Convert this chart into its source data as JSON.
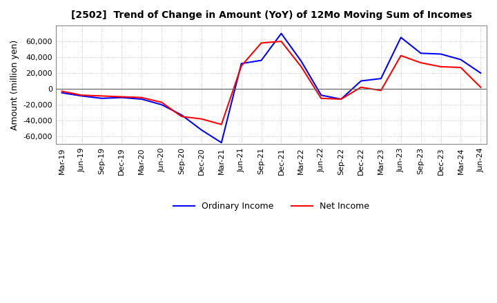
{
  "title": "[2502]  Trend of Change in Amount (YoY) of 12Mo Moving Sum of Incomes",
  "ylabel": "Amount (million yen)",
  "ylim": [
    -70000,
    80000
  ],
  "yticks": [
    -60000,
    -40000,
    -20000,
    0,
    20000,
    40000,
    60000
  ],
  "background_color": "#ffffff",
  "grid_color": "#aaaaaa",
  "ordinary_income_color": "#0000ff",
  "net_income_color": "#ff0000",
  "x_labels": [
    "Mar-19",
    "Jun-19",
    "Sep-19",
    "Dec-19",
    "Mar-20",
    "Jun-20",
    "Sep-20",
    "Dec-20",
    "Mar-21",
    "Jun-21",
    "Sep-21",
    "Dec-21",
    "Mar-22",
    "Jun-22",
    "Sep-22",
    "Dec-22",
    "Mar-23",
    "Jun-23",
    "Sep-23",
    "Dec-23",
    "Mar-24",
    "Jun-24"
  ],
  "ordinary_income": [
    -5000,
    -9000,
    -12000,
    -11000,
    -13000,
    -20000,
    -33000,
    -52000,
    -68000,
    32000,
    36000,
    70000,
    35000,
    -8000,
    -13000,
    10000,
    13000,
    65000,
    45000,
    44000,
    37000,
    20000
  ],
  "net_income": [
    -3000,
    -8000,
    -9000,
    -10000,
    -11000,
    -17000,
    -35000,
    -38000,
    -45000,
    29000,
    58000,
    60000,
    28000,
    -12000,
    -13000,
    2000,
    -2000,
    42000,
    33000,
    28000,
    27000,
    2000
  ]
}
